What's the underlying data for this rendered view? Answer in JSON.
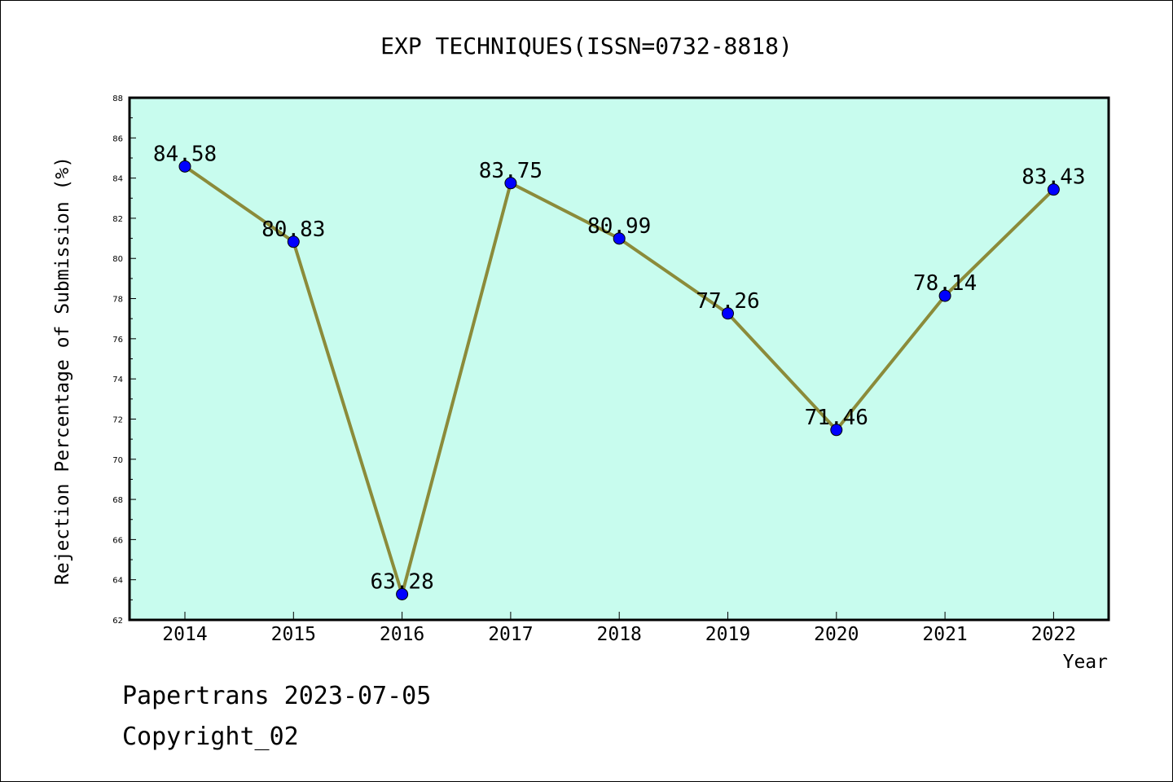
{
  "chart_data": {
    "type": "line",
    "title": "EXP TECHNIQUES(ISSN=0732-8818)",
    "xlabel": "Year",
    "ylabel": "Rejection Percentage of Submission (%)",
    "categories": [
      "2014",
      "2015",
      "2016",
      "2017",
      "2018",
      "2019",
      "2020",
      "2021",
      "2022"
    ],
    "series": [
      {
        "values": [
          84.58,
          80.83,
          63.28,
          83.75,
          80.99,
          77.26,
          71.46,
          78.14,
          83.43
        ]
      }
    ],
    "data_labels": [
      "84.58",
      "80.83",
      "63.28",
      "83.75",
      "80.99",
      "77.26",
      "71.46",
      "78.14",
      "83.43"
    ],
    "ylim": [
      62,
      88
    ],
    "yticks": [
      "62",
      "64",
      "66",
      "68",
      "70",
      "72",
      "74",
      "76",
      "78",
      "80",
      "82",
      "84",
      "86",
      "88"
    ],
    "grid": false,
    "colors": {
      "plot_background": "#c8fcee",
      "line": "#8b8b3a",
      "marker": "#0000ff"
    }
  },
  "footer": {
    "line1": "Papertrans 2023-07-05",
    "line2": "Copyright_02"
  }
}
